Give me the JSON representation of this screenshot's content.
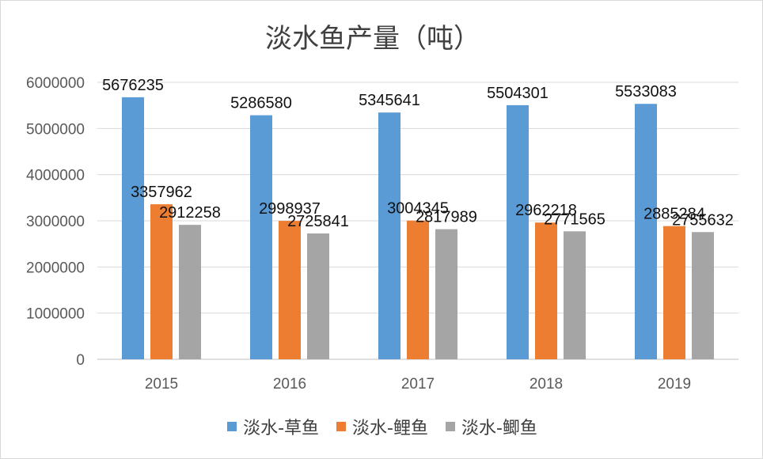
{
  "chart_data": {
    "type": "bar",
    "title": "淡水鱼产量（吨）",
    "categories": [
      "2015",
      "2016",
      "2017",
      "2018",
      "2019"
    ],
    "series": [
      {
        "name": "淡水-草鱼",
        "color": "#5b9bd5",
        "values": [
          5676235,
          5286580,
          5345641,
          5504301,
          5533083
        ]
      },
      {
        "name": "淡水-鲤鱼",
        "color": "#ed7d31",
        "values": [
          3357962,
          2998937,
          3004345,
          2962218,
          2885284
        ]
      },
      {
        "name": "淡水-鲫鱼",
        "color": "#a5a5a5",
        "values": [
          2912258,
          2725841,
          2817989,
          2771565,
          2755632
        ]
      }
    ],
    "ylim": [
      0,
      6000000
    ],
    "yticks": [
      0,
      1000000,
      2000000,
      3000000,
      4000000,
      5000000,
      6000000
    ],
    "ytick_labels": [
      "0",
      "1000000",
      "2000000",
      "3000000",
      "4000000",
      "5000000",
      "6000000"
    ],
    "grid": true,
    "legend_position": "bottom"
  }
}
